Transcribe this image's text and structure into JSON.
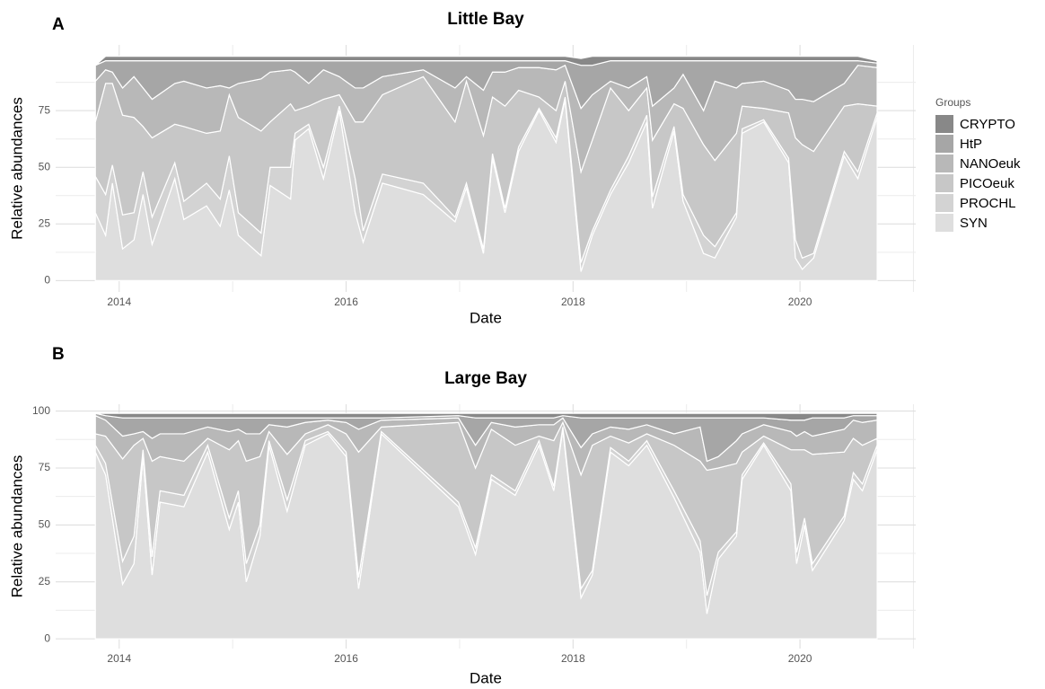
{
  "chart_data": [
    {
      "type": "stacked_area",
      "panel_label": "A",
      "title": "Little Bay",
      "x_label": "Date",
      "y_label": "Relative abundances",
      "legend_title": "Groups",
      "grid": true,
      "xlim": [
        2013.44,
        2021.02
      ],
      "xticks": [
        2014,
        2016,
        2018,
        2020
      ],
      "ylim": [
        -5,
        104
      ],
      "yticks": [
        0,
        25,
        50,
        75
      ],
      "x": [
        2013.79,
        2013.88,
        2013.94,
        2014.03,
        2014.13,
        2014.21,
        2014.29,
        2014.49,
        2014.57,
        2014.77,
        2014.89,
        2014.97,
        2015.05,
        2015.25,
        2015.33,
        2015.51,
        2015.55,
        2015.67,
        2015.8,
        2015.94,
        2016.08,
        2016.15,
        2016.32,
        2016.68,
        2016.96,
        2017.06,
        2017.21,
        2017.29,
        2017.4,
        2017.52,
        2017.7,
        2017.85,
        2017.93,
        2018.07,
        2018.17,
        2018.33,
        2018.49,
        2018.65,
        2018.7,
        2018.89,
        2018.97,
        2019.15,
        2019.25,
        2019.44,
        2019.49,
        2019.68,
        2019.9,
        2019.96,
        2020.02,
        2020.12,
        2020.39,
        2020.51,
        2020.68
      ],
      "series": [
        {
          "name": "SYN",
          "color": "#dedede",
          "values": [
            30,
            20,
            43,
            14,
            18,
            38,
            16,
            45,
            27,
            33,
            24,
            40,
            20,
            11,
            42,
            36,
            62,
            67,
            45,
            75,
            30,
            17,
            43,
            38,
            26,
            41,
            12,
            54,
            30,
            57,
            75,
            61,
            80,
            4,
            20,
            38,
            52,
            70,
            32,
            66,
            35,
            12,
            10,
            28,
            65,
            70,
            52,
            10,
            5,
            10,
            55,
            45,
            72
          ]
        },
        {
          "name": "PROCHL",
          "color": "#d3d3d3",
          "values": [
            16,
            18,
            8,
            15,
            12,
            10,
            12,
            7,
            8,
            10,
            12,
            15,
            10,
            10,
            8,
            14,
            3,
            2,
            5,
            2,
            15,
            5,
            4,
            5,
            2,
            2,
            2,
            2,
            2,
            2,
            1,
            2,
            1,
            4,
            2,
            2,
            3,
            3,
            5,
            2,
            3,
            8,
            5,
            2,
            2,
            1,
            2,
            8,
            5,
            2,
            2,
            3,
            2
          ]
        },
        {
          "name": "PICOeuk",
          "color": "#c7c7c7",
          "values": [
            24,
            49,
            36,
            44,
            42,
            20,
            35,
            17,
            33,
            22,
            30,
            27,
            42,
            45,
            20,
            28,
            10,
            8,
            30,
            5,
            25,
            48,
            35,
            47,
            42,
            45,
            50,
            25,
            45,
            25,
            5,
            12,
            7,
            40,
            40,
            45,
            20,
            12,
            25,
            10,
            38,
            40,
            38,
            35,
            10,
            5,
            20,
            45,
            50,
            45,
            20,
            30,
            3
          ]
        },
        {
          "name": "NANOeuk",
          "color": "#b8b8b8",
          "values": [
            18,
            6,
            5,
            12,
            18,
            17,
            17,
            18,
            20,
            20,
            20,
            3,
            15,
            23,
            22,
            15,
            17,
            10,
            13,
            8,
            15,
            15,
            8,
            3,
            15,
            2,
            20,
            11,
            15,
            10,
            13,
            18,
            7,
            28,
            20,
            3,
            10,
            5,
            15,
            7,
            15,
            15,
            35,
            20,
            10,
            12,
            10,
            17,
            20,
            22,
            10,
            17,
            17
          ]
        },
        {
          "name": "HtP",
          "color": "#a6a6a6",
          "values": [
            7,
            4,
            5,
            12,
            7,
            12,
            17,
            10,
            9,
            12,
            11,
            12,
            10,
            8,
            5,
            4,
            5,
            10,
            4,
            7,
            12,
            12,
            7,
            4,
            12,
            7,
            13,
            5,
            5,
            3,
            3,
            4,
            2,
            19,
            13,
            9,
            12,
            7,
            20,
            12,
            6,
            22,
            9,
            12,
            10,
            9,
            13,
            17,
            17,
            18,
            10,
            2,
            2
          ]
        },
        {
          "name": "CRYPTO",
          "color": "#888888",
          "values": [
            0,
            2,
            2,
            2,
            2,
            2,
            2,
            2,
            2,
            2,
            2,
            2,
            2,
            2,
            2,
            2,
            2,
            2,
            2,
            2,
            2,
            2,
            2,
            2,
            2,
            2,
            2,
            2,
            2,
            2,
            2,
            2,
            2,
            3,
            4,
            2,
            2,
            2,
            2,
            2,
            2,
            2,
            2,
            2,
            2,
            2,
            2,
            2,
            2,
            2,
            2,
            2,
            1
          ]
        }
      ]
    },
    {
      "type": "stacked_area",
      "panel_label": "B",
      "title": "Large Bay",
      "x_label": "Date",
      "y_label": "Relative abundances",
      "grid": true,
      "xlim": [
        2013.44,
        2021.02
      ],
      "xticks": [
        2014,
        2016,
        2018,
        2020
      ],
      "ylim": [
        -4.3,
        103
      ],
      "yticks": [
        0,
        25,
        50,
        75,
        100
      ],
      "x": [
        2013.79,
        2013.88,
        2014.03,
        2014.13,
        2014.21,
        2014.29,
        2014.36,
        2014.57,
        2014.78,
        2014.97,
        2015.05,
        2015.12,
        2015.24,
        2015.32,
        2015.48,
        2015.64,
        2015.84,
        2016.0,
        2016.11,
        2016.31,
        2016.99,
        2017.14,
        2017.28,
        2017.49,
        2017.7,
        2017.83,
        2017.91,
        2018.07,
        2018.17,
        2018.33,
        2018.49,
        2018.65,
        2018.89,
        2019.12,
        2019.18,
        2019.28,
        2019.44,
        2019.49,
        2019.68,
        2019.92,
        2019.97,
        2020.04,
        2020.11,
        2020.39,
        2020.47,
        2020.55,
        2020.68
      ],
      "series": [
        {
          "name": "SYN",
          "color": "#dedede",
          "values": [
            82,
            72,
            24,
            33,
            80,
            28,
            60,
            58,
            82,
            48,
            60,
            25,
            45,
            85,
            56,
            85,
            90,
            80,
            22,
            90,
            58,
            37,
            70,
            63,
            85,
            65,
            92,
            18,
            28,
            82,
            76,
            85,
            62,
            38,
            11,
            35,
            45,
            70,
            85,
            65,
            33,
            50,
            30,
            52,
            70,
            65,
            83
          ]
        },
        {
          "name": "PROCHL",
          "color": "#d3d3d3",
          "values": [
            3,
            5,
            10,
            12,
            3,
            8,
            5,
            5,
            3,
            5,
            5,
            8,
            5,
            2,
            5,
            2,
            1,
            2,
            5,
            1,
            2,
            3,
            2,
            2,
            2,
            2,
            1,
            4,
            2,
            2,
            2,
            2,
            3,
            5,
            8,
            3,
            2,
            2,
            1,
            3,
            5,
            3,
            3,
            2,
            3,
            3,
            2
          ]
        },
        {
          "name": "PICOeuk",
          "color": "#c7c7c7",
          "values": [
            5,
            12,
            45,
            40,
            5,
            42,
            15,
            15,
            3,
            30,
            22,
            45,
            30,
            4,
            20,
            3,
            3,
            8,
            55,
            2,
            35,
            35,
            20,
            20,
            2,
            20,
            2,
            50,
            55,
            5,
            8,
            3,
            20,
            35,
            55,
            37,
            30,
            10,
            3,
            15,
            45,
            30,
            48,
            28,
            15,
            17,
            3
          ]
        },
        {
          "name": "NANOeuk",
          "color": "#b8b8b8",
          "values": [
            8,
            7,
            10,
            5,
            3,
            10,
            10,
            12,
            5,
            8,
            5,
            12,
            10,
            3,
            12,
            5,
            2,
            5,
            10,
            3,
            2,
            10,
            3,
            8,
            5,
            7,
            2,
            12,
            5,
            4,
            6,
            4,
            5,
            15,
            4,
            5,
            10,
            8,
            5,
            8,
            6,
            8,
            8,
            10,
            8,
            10,
            8
          ]
        },
        {
          "name": "HtP",
          "color": "#a6a6a6",
          "values": [
            1,
            2,
            8,
            7,
            6,
            9,
            7,
            7,
            4,
            6,
            5,
            7,
            7,
            3,
            4,
            2,
            1,
            2,
            5,
            1,
            1,
            12,
            2,
            4,
            3,
            3,
            1,
            13,
            7,
            4,
            5,
            3,
            7,
            4,
            19,
            17,
            10,
            7,
            3,
            5,
            7,
            5,
            8,
            5,
            2,
            3,
            2
          ]
        },
        {
          "name": "CRYPTO",
          "color": "#888888",
          "values": [
            0,
            1,
            2,
            2,
            2,
            2,
            2,
            2,
            2,
            2,
            2,
            2,
            2,
            2,
            2,
            2,
            2,
            2,
            2,
            2,
            1,
            2,
            2,
            2,
            2,
            2,
            1,
            2,
            2,
            2,
            2,
            2,
            2,
            2,
            2,
            2,
            2,
            2,
            2,
            3,
            3,
            3,
            2,
            2,
            1,
            1,
            1
          ]
        }
      ]
    }
  ]
}
